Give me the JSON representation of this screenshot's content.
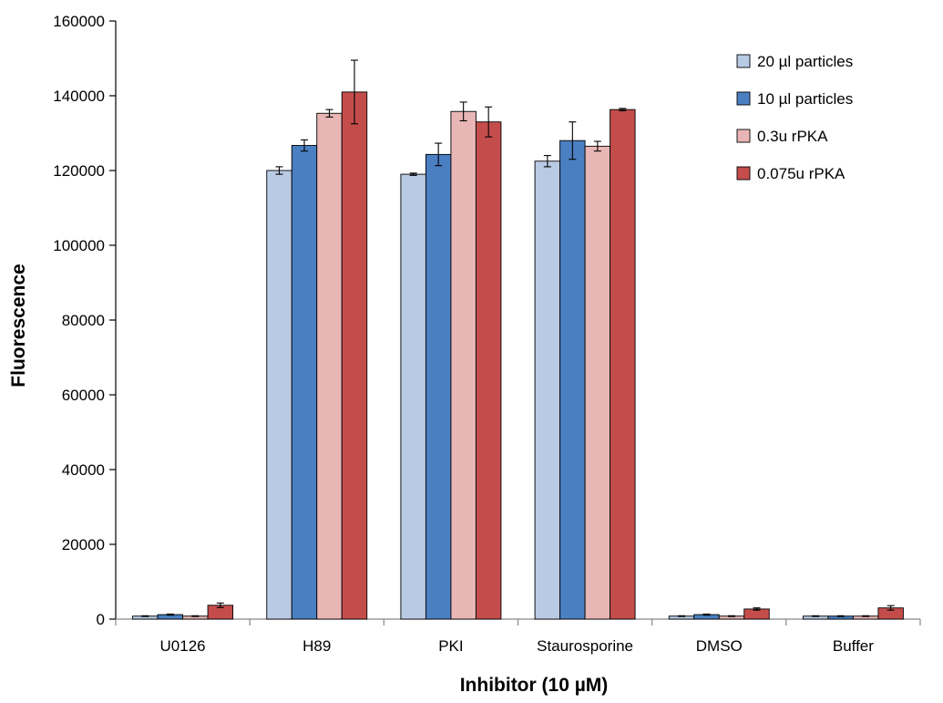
{
  "chart_data": {
    "type": "bar",
    "title": "",
    "xlabel": "Inhibitor (10 µM)",
    "ylabel": "Fluorescence",
    "ylim": [
      0,
      160000
    ],
    "yticks": [
      0,
      20000,
      40000,
      60000,
      80000,
      100000,
      120000,
      140000,
      160000
    ],
    "categories": [
      "U0126",
      "H89",
      "PKI",
      "Staurosporine",
      "DMSO",
      "Buffer"
    ],
    "grid": false,
    "legend_position": "top-right",
    "series": [
      {
        "name": "20 µl particles",
        "color": "#b9cae4",
        "values": [
          800,
          120000,
          119000,
          122500,
          800,
          800
        ],
        "errors": [
          100,
          1000,
          300,
          1500,
          100,
          100
        ]
      },
      {
        "name": "10 µl particles",
        "color": "#4a7fc1",
        "values": [
          1200,
          126700,
          124300,
          128000,
          1200,
          800
        ],
        "errors": [
          150,
          1500,
          3000,
          5000,
          150,
          100
        ]
      },
      {
        "name": "0.3u rPKA",
        "color": "#e8b6b5",
        "values": [
          800,
          135300,
          135800,
          126500,
          800,
          800
        ],
        "errors": [
          100,
          1000,
          2500,
          1300,
          100,
          100
        ]
      },
      {
        "name": "0.075u rPKA",
        "color": "#c44d4c",
        "values": [
          3700,
          141000,
          133000,
          136300,
          2700,
          3000
        ],
        "errors": [
          600,
          8500,
          4000,
          300,
          300,
          600
        ]
      }
    ]
  }
}
